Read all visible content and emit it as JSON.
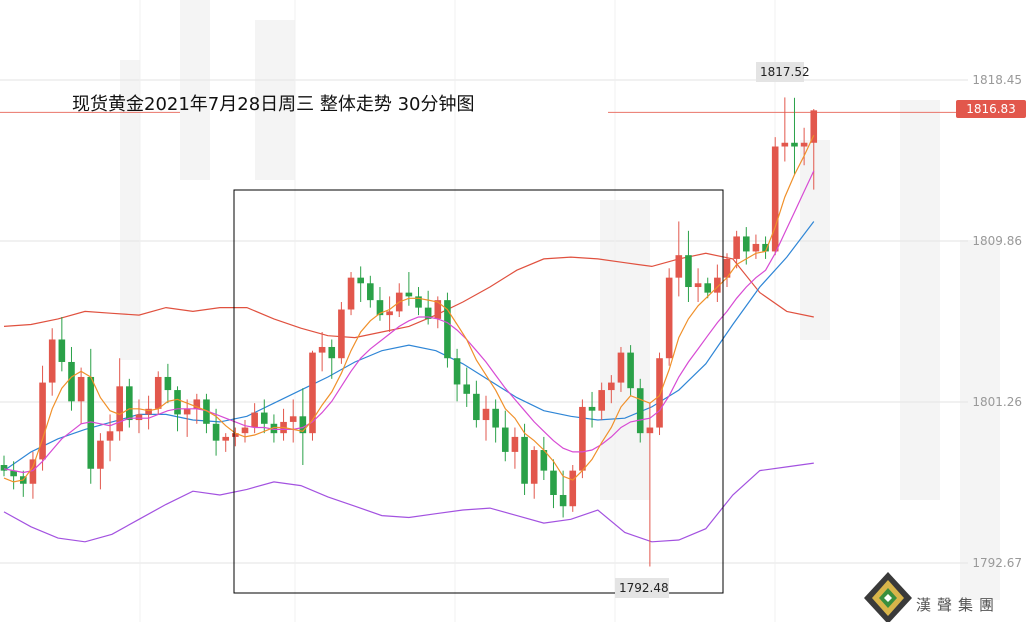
{
  "chart_data": {
    "type": "candlestick",
    "title": "现货黄金2021年7月28日周三  整体走势 30分钟图",
    "y_ticks": [
      "1818.45",
      "1809.86",
      "1801.26",
      "1792.67"
    ],
    "ylim": [
      1791.8,
      1819.5
    ],
    "current_price": "1816.83",
    "high_label": "1817.52",
    "low_label": "1792.48",
    "grid": true,
    "indicators": [
      "Bollinger Bands",
      "Moving averages"
    ],
    "candles": [
      [
        1797.9,
        1798.4,
        1797.3,
        1797.6
      ],
      [
        1797.6,
        1798.1,
        1796.6,
        1797.3
      ],
      [
        1797.3,
        1797.6,
        1796.2,
        1796.9
      ],
      [
        1796.9,
        1798.6,
        1796.1,
        1798.2
      ],
      [
        1798.2,
        1803.2,
        1797.6,
        1802.3
      ],
      [
        1802.3,
        1805.2,
        1801.6,
        1804.6
      ],
      [
        1804.6,
        1805.8,
        1802.9,
        1803.4
      ],
      [
        1803.4,
        1804.2,
        1800.8,
        1801.3
      ],
      [
        1801.3,
        1803.1,
        1800.1,
        1802.6
      ],
      [
        1802.6,
        1804.1,
        1796.9,
        1797.7
      ],
      [
        1797.7,
        1799.6,
        1796.6,
        1799.2
      ],
      [
        1799.2,
        1800.6,
        1798.1,
        1799.7
      ],
      [
        1799.7,
        1803.6,
        1799.2,
        1802.1
      ],
      [
        1802.1,
        1802.5,
        1799.9,
        1800.3
      ],
      [
        1800.3,
        1801.4,
        1799.6,
        1800.6
      ],
      [
        1800.6,
        1801.6,
        1799.8,
        1800.9
      ],
      [
        1800.9,
        1802.9,
        1800.6,
        1802.6
      ],
      [
        1802.6,
        1803.3,
        1801.2,
        1801.9
      ],
      [
        1801.9,
        1802.1,
        1799.7,
        1800.6
      ],
      [
        1800.6,
        1801.4,
        1799.4,
        1800.9
      ],
      [
        1800.9,
        1801.7,
        1800.1,
        1801.4
      ],
      [
        1801.4,
        1801.7,
        1799.6,
        1800.1
      ],
      [
        1800.1,
        1800.9,
        1798.4,
        1799.2
      ],
      [
        1799.2,
        1799.6,
        1798.6,
        1799.4
      ],
      [
        1799.4,
        1799.9,
        1798.9,
        1799.6
      ],
      [
        1799.6,
        1800.3,
        1799.1,
        1799.9
      ],
      [
        1799.9,
        1801.2,
        1799.6,
        1800.7
      ],
      [
        1800.7,
        1801.4,
        1799.6,
        1800.1
      ],
      [
        1800.1,
        1800.6,
        1799.1,
        1799.6
      ],
      [
        1799.6,
        1800.9,
        1799.2,
        1800.2
      ],
      [
        1800.2,
        1801.4,
        1799.1,
        1800.5
      ],
      [
        1800.5,
        1802.0,
        1797.9,
        1799.6
      ],
      [
        1799.6,
        1804.0,
        1799.2,
        1803.9
      ],
      [
        1803.9,
        1805.0,
        1802.9,
        1804.2
      ],
      [
        1804.2,
        1804.6,
        1802.5,
        1803.6
      ],
      [
        1803.6,
        1806.6,
        1803.3,
        1806.2
      ],
      [
        1806.2,
        1808.2,
        1805.9,
        1807.9
      ],
      [
        1807.9,
        1808.5,
        1806.6,
        1807.6
      ],
      [
        1807.6,
        1808.0,
        1806.3,
        1806.7
      ],
      [
        1806.7,
        1807.4,
        1805.6,
        1805.9
      ],
      [
        1805.9,
        1806.9,
        1805.0,
        1806.1
      ],
      [
        1806.1,
        1807.6,
        1805.8,
        1807.1
      ],
      [
        1807.1,
        1808.2,
        1806.4,
        1806.9
      ],
      [
        1806.9,
        1807.4,
        1805.9,
        1806.3
      ],
      [
        1806.3,
        1807.2,
        1805.4,
        1805.7
      ],
      [
        1805.7,
        1806.9,
        1805.2,
        1806.7
      ],
      [
        1806.7,
        1807.1,
        1803.1,
        1803.6
      ],
      [
        1803.6,
        1804.1,
        1801.3,
        1802.2
      ],
      [
        1802.2,
        1803.1,
        1801.0,
        1801.7
      ],
      [
        1801.7,
        1802.4,
        1799.9,
        1800.3
      ],
      [
        1800.3,
        1801.6,
        1799.2,
        1800.9
      ],
      [
        1800.9,
        1801.4,
        1799.1,
        1799.9
      ],
      [
        1799.9,
        1800.8,
        1798.1,
        1798.6
      ],
      [
        1798.6,
        1799.9,
        1797.7,
        1799.4
      ],
      [
        1799.4,
        1800.1,
        1796.3,
        1796.9
      ],
      [
        1796.9,
        1798.9,
        1796.1,
        1798.7
      ],
      [
        1798.7,
        1799.4,
        1797.1,
        1797.6
      ],
      [
        1797.6,
        1798.2,
        1795.6,
        1796.3
      ],
      [
        1796.3,
        1797.6,
        1795.1,
        1795.7
      ],
      [
        1795.7,
        1797.9,
        1795.4,
        1797.6
      ],
      [
        1797.6,
        1801.4,
        1797.2,
        1801.0
      ],
      [
        1801.0,
        1801.8,
        1799.9,
        1800.8
      ],
      [
        1800.8,
        1802.3,
        1800.3,
        1801.9
      ],
      [
        1801.9,
        1802.7,
        1801.2,
        1802.3
      ],
      [
        1802.3,
        1804.2,
        1801.8,
        1803.9
      ],
      [
        1803.9,
        1804.3,
        1801.6,
        1802.0
      ],
      [
        1802.0,
        1802.5,
        1799.1,
        1799.6
      ],
      [
        1799.6,
        1801.2,
        1792.48,
        1799.9
      ],
      [
        1799.9,
        1803.9,
        1799.5,
        1803.6
      ],
      [
        1803.6,
        1808.4,
        1803.2,
        1807.9
      ],
      [
        1807.9,
        1810.9,
        1806.9,
        1809.1
      ],
      [
        1809.1,
        1810.4,
        1806.6,
        1807.4
      ],
      [
        1807.4,
        1808.4,
        1806.6,
        1807.6
      ],
      [
        1807.6,
        1807.9,
        1806.8,
        1807.1
      ],
      [
        1807.1,
        1808.6,
        1806.6,
        1807.9
      ],
      [
        1807.9,
        1809.2,
        1807.4,
        1808.9
      ],
      [
        1808.9,
        1810.4,
        1808.4,
        1810.1
      ],
      [
        1810.1,
        1810.6,
        1808.6,
        1809.3
      ],
      [
        1809.3,
        1810.2,
        1808.9,
        1809.7
      ],
      [
        1809.7,
        1810.1,
        1808.9,
        1809.3
      ],
      [
        1809.3,
        1815.4,
        1809.1,
        1814.9
      ],
      [
        1814.9,
        1817.52,
        1814.1,
        1815.1
      ],
      [
        1815.1,
        1817.5,
        1813.4,
        1814.9
      ],
      [
        1814.9,
        1815.9,
        1813.9,
        1815.1
      ],
      [
        1815.1,
        1816.9,
        1812.6,
        1816.83
      ]
    ],
    "bollinger_upper": [
      1805.3,
      1805.4,
      1805.7,
      1806.1,
      1806.0,
      1805.9,
      1806.3,
      1806.1,
      1806.3,
      1806.3,
      1805.7,
      1805.2,
      1804.8,
      1804.7,
      1805.0,
      1805.3,
      1805.9,
      1806.6,
      1807.4,
      1808.3,
      1808.9,
      1809.0,
      1808.9,
      1808.7,
      1808.5,
      1808.9,
      1809.2,
      1808.9,
      1807.1,
      1806.1,
      1805.8
    ],
    "bollinger_mid": [
      1797.6,
      1798.6,
      1799.3,
      1799.8,
      1800.2,
      1800.6,
      1800.6,
      1800.3,
      1800.2,
      1800.5,
      1801.2,
      1801.9,
      1802.6,
      1803.4,
      1804.0,
      1804.3,
      1804.0,
      1803.3,
      1802.4,
      1801.5,
      1800.8,
      1800.5,
      1800.3,
      1800.4,
      1801.0,
      1801.9,
      1803.3,
      1805.4,
      1807.4,
      1809.0,
      1810.9
    ],
    "bollinger_lower": [
      1795.4,
      1794.6,
      1794.0,
      1793.8,
      1794.2,
      1795.0,
      1795.8,
      1796.5,
      1796.3,
      1796.6,
      1797.0,
      1796.8,
      1796.2,
      1795.7,
      1795.2,
      1795.1,
      1795.3,
      1795.5,
      1795.6,
      1795.2,
      1794.8,
      1795.0,
      1795.5,
      1794.3,
      1793.8,
      1793.9,
      1794.5,
      1796.3,
      1797.6,
      1797.8,
      1798.0
    ],
    "ma_fast": [
      1797.2,
      1797.0,
      1797.1,
      1797.8,
      1799.3,
      1800.9,
      1802.0,
      1802.6,
      1802.9,
      1802.6,
      1801.5,
      1800.8,
      1800.6,
      1800.9,
      1800.9,
      1800.8,
      1800.9,
      1801.3,
      1801.4,
      1801.2,
      1801.0,
      1800.8,
      1800.5,
      1800.0,
      1799.6,
      1799.4,
      1799.5,
      1799.7,
      1799.9,
      1799.9,
      1799.8,
      1799.7,
      1800.3,
      1801.1,
      1801.8,
      1802.8,
      1804.0,
      1805.0,
      1805.6,
      1806.0,
      1806.2,
      1806.6,
      1806.8,
      1806.8,
      1806.7,
      1806.6,
      1806.2,
      1805.4,
      1804.6,
      1803.5,
      1802.7,
      1801.9,
      1800.9,
      1800.4,
      1799.6,
      1799.2,
      1798.7,
      1798.1,
      1797.3,
      1797.1,
      1797.6,
      1798.2,
      1799.1,
      1799.9,
      1801.0,
      1801.6,
      1801.4,
      1801.2,
      1801.6,
      1803.0,
      1804.7,
      1805.7,
      1806.4,
      1806.9,
      1807.4,
      1807.9,
      1808.6,
      1808.9,
      1809.2,
      1809.3,
      1810.6,
      1812.2,
      1813.4,
      1814.4,
      1815.5
    ],
    "ma_slow": [
      1797.7,
      1797.6,
      1797.5,
      1797.6,
      1798.1,
      1798.7,
      1799.3,
      1799.7,
      1800.1,
      1800.2,
      1800.1,
      1800.0,
      1800.2,
      1800.4,
      1800.4,
      1800.4,
      1800.6,
      1800.8,
      1800.9,
      1800.9,
      1800.9,
      1800.8,
      1800.6,
      1800.4,
      1800.2,
      1800.0,
      1799.9,
      1799.9,
      1799.8,
      1799.8,
      1799.8,
      1799.9,
      1800.2,
      1800.7,
      1801.3,
      1802.1,
      1802.9,
      1803.6,
      1804.1,
      1804.5,
      1804.9,
      1805.3,
      1805.6,
      1805.8,
      1805.8,
      1805.7,
      1805.5,
      1805.1,
      1804.6,
      1804.0,
      1803.4,
      1802.7,
      1802.0,
      1801.4,
      1800.8,
      1800.2,
      1799.7,
      1799.2,
      1798.8,
      1798.6,
      1798.6,
      1798.7,
      1799.0,
      1799.4,
      1799.9,
      1800.2,
      1800.3,
      1800.4,
      1800.8,
      1801.6,
      1802.6,
      1803.4,
      1804.1,
      1804.8,
      1805.5,
      1806.1,
      1806.8,
      1807.4,
      1807.9,
      1808.3,
      1809.2,
      1810.3,
      1811.4,
      1812.5,
      1813.6
    ]
  },
  "colors": {
    "up": "#e2574c",
    "down": "#2aa148",
    "boll_upper": "#e0513f",
    "boll_lower": "#a352e0",
    "boll_mid": "#2f86d6",
    "ma_fast": "#f0902a",
    "ma_slow": "#d74bd4",
    "grid": "#e3e3e3",
    "box": "#000000",
    "ref_line": "#e9756a"
  },
  "logo": {
    "text": "漢聲集團"
  },
  "icons": {
    "logo_mark": "diamond-logo-icon"
  }
}
